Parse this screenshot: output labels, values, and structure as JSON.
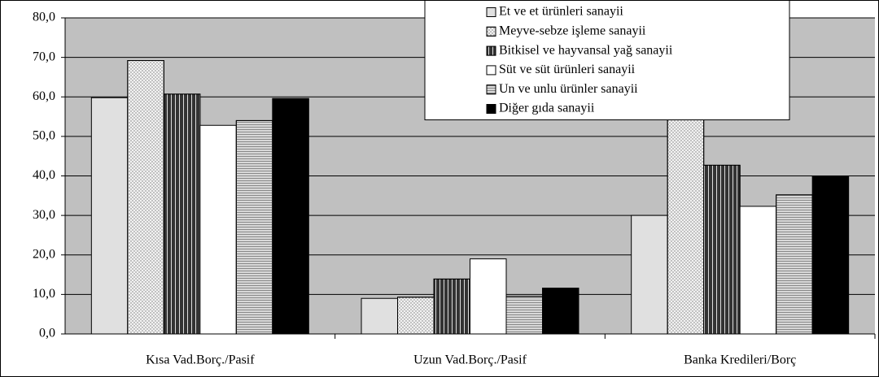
{
  "chart_data": {
    "type": "bar",
    "categories": [
      "Kısa Vad.Borç./Pasif",
      "Uzun Vad.Borç./Pasif",
      "Banka Kredileri/Borç"
    ],
    "series": [
      {
        "name": "Et ve et ürünleri sanayii",
        "color": "#e0e0e0",
        "values": [
          59.8,
          9.0,
          30.0
        ]
      },
      {
        "name": "Meyve-sebze işleme sanayii",
        "color": "#f2f2f2",
        "values": [
          69.2,
          9.3,
          63.0
        ]
      },
      {
        "name": "Bitkisel ve hayvansal yağ sanayii",
        "color": "#333333",
        "values": [
          60.7,
          13.9,
          42.7
        ]
      },
      {
        "name": "Süt ve süt ürünleri sanayii",
        "color": "#ffffff",
        "values": [
          52.8,
          19.0,
          32.3
        ]
      },
      {
        "name": "Un ve unlu ürünler sanayii",
        "color": "#d8d8d8",
        "values": [
          54.0,
          9.5,
          35.2
        ]
      },
      {
        "name": "Diğer gıda sanayii",
        "color": "#000000",
        "values": [
          59.6,
          11.6,
          39.8
        ]
      }
    ],
    "ylim": [
      0,
      80
    ],
    "yticks": [
      {
        "value": 0,
        "label": "0,0"
      },
      {
        "value": 10,
        "label": "10,0"
      },
      {
        "value": 20,
        "label": "20,0"
      },
      {
        "value": 30,
        "label": "30,0"
      },
      {
        "value": 40,
        "label": "40,0"
      },
      {
        "value": 50,
        "label": "50,0"
      },
      {
        "value": 60,
        "label": "60,0"
      },
      {
        "value": 70,
        "label": "70,0"
      },
      {
        "value": 80,
        "label": "80,0"
      }
    ],
    "grid": true,
    "legend": "top-right"
  }
}
